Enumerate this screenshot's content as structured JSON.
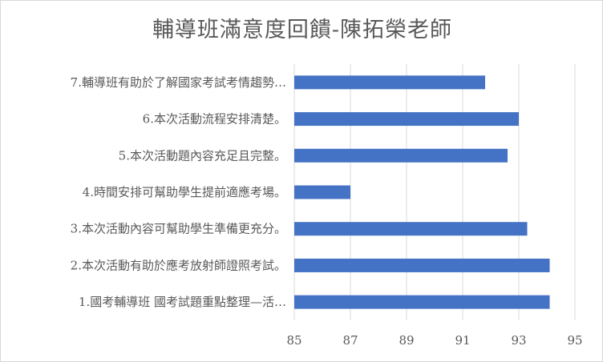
{
  "chart_data": {
    "type": "bar",
    "orientation": "horizontal",
    "title": "輔導班滿意度回饋-陳拓榮老師",
    "categories": [
      "1.國考輔導班 國考試題重點整理—活…",
      "2.本次活動有助於應考放射師證照考試。",
      "3.本次活動內容可幫助學生準備更充分。",
      "4.時間安排可幫助學生提前適應考場。",
      "5.本次活動題內容充足且完整。",
      "6.本次活動流程安排清楚。",
      "7.輔導班有助於了解國家考試考情趨勢…"
    ],
    "values": [
      94.1,
      94.1,
      93.3,
      87.0,
      92.6,
      93.0,
      91.8
    ],
    "xlim": [
      85,
      95
    ],
    "xticks": [
      85,
      87,
      89,
      91,
      93,
      95
    ],
    "grid": true,
    "legend": "none",
    "bar_color": "#4472c4",
    "grid_color": "#d9d9d9",
    "text_color": "#595959"
  }
}
